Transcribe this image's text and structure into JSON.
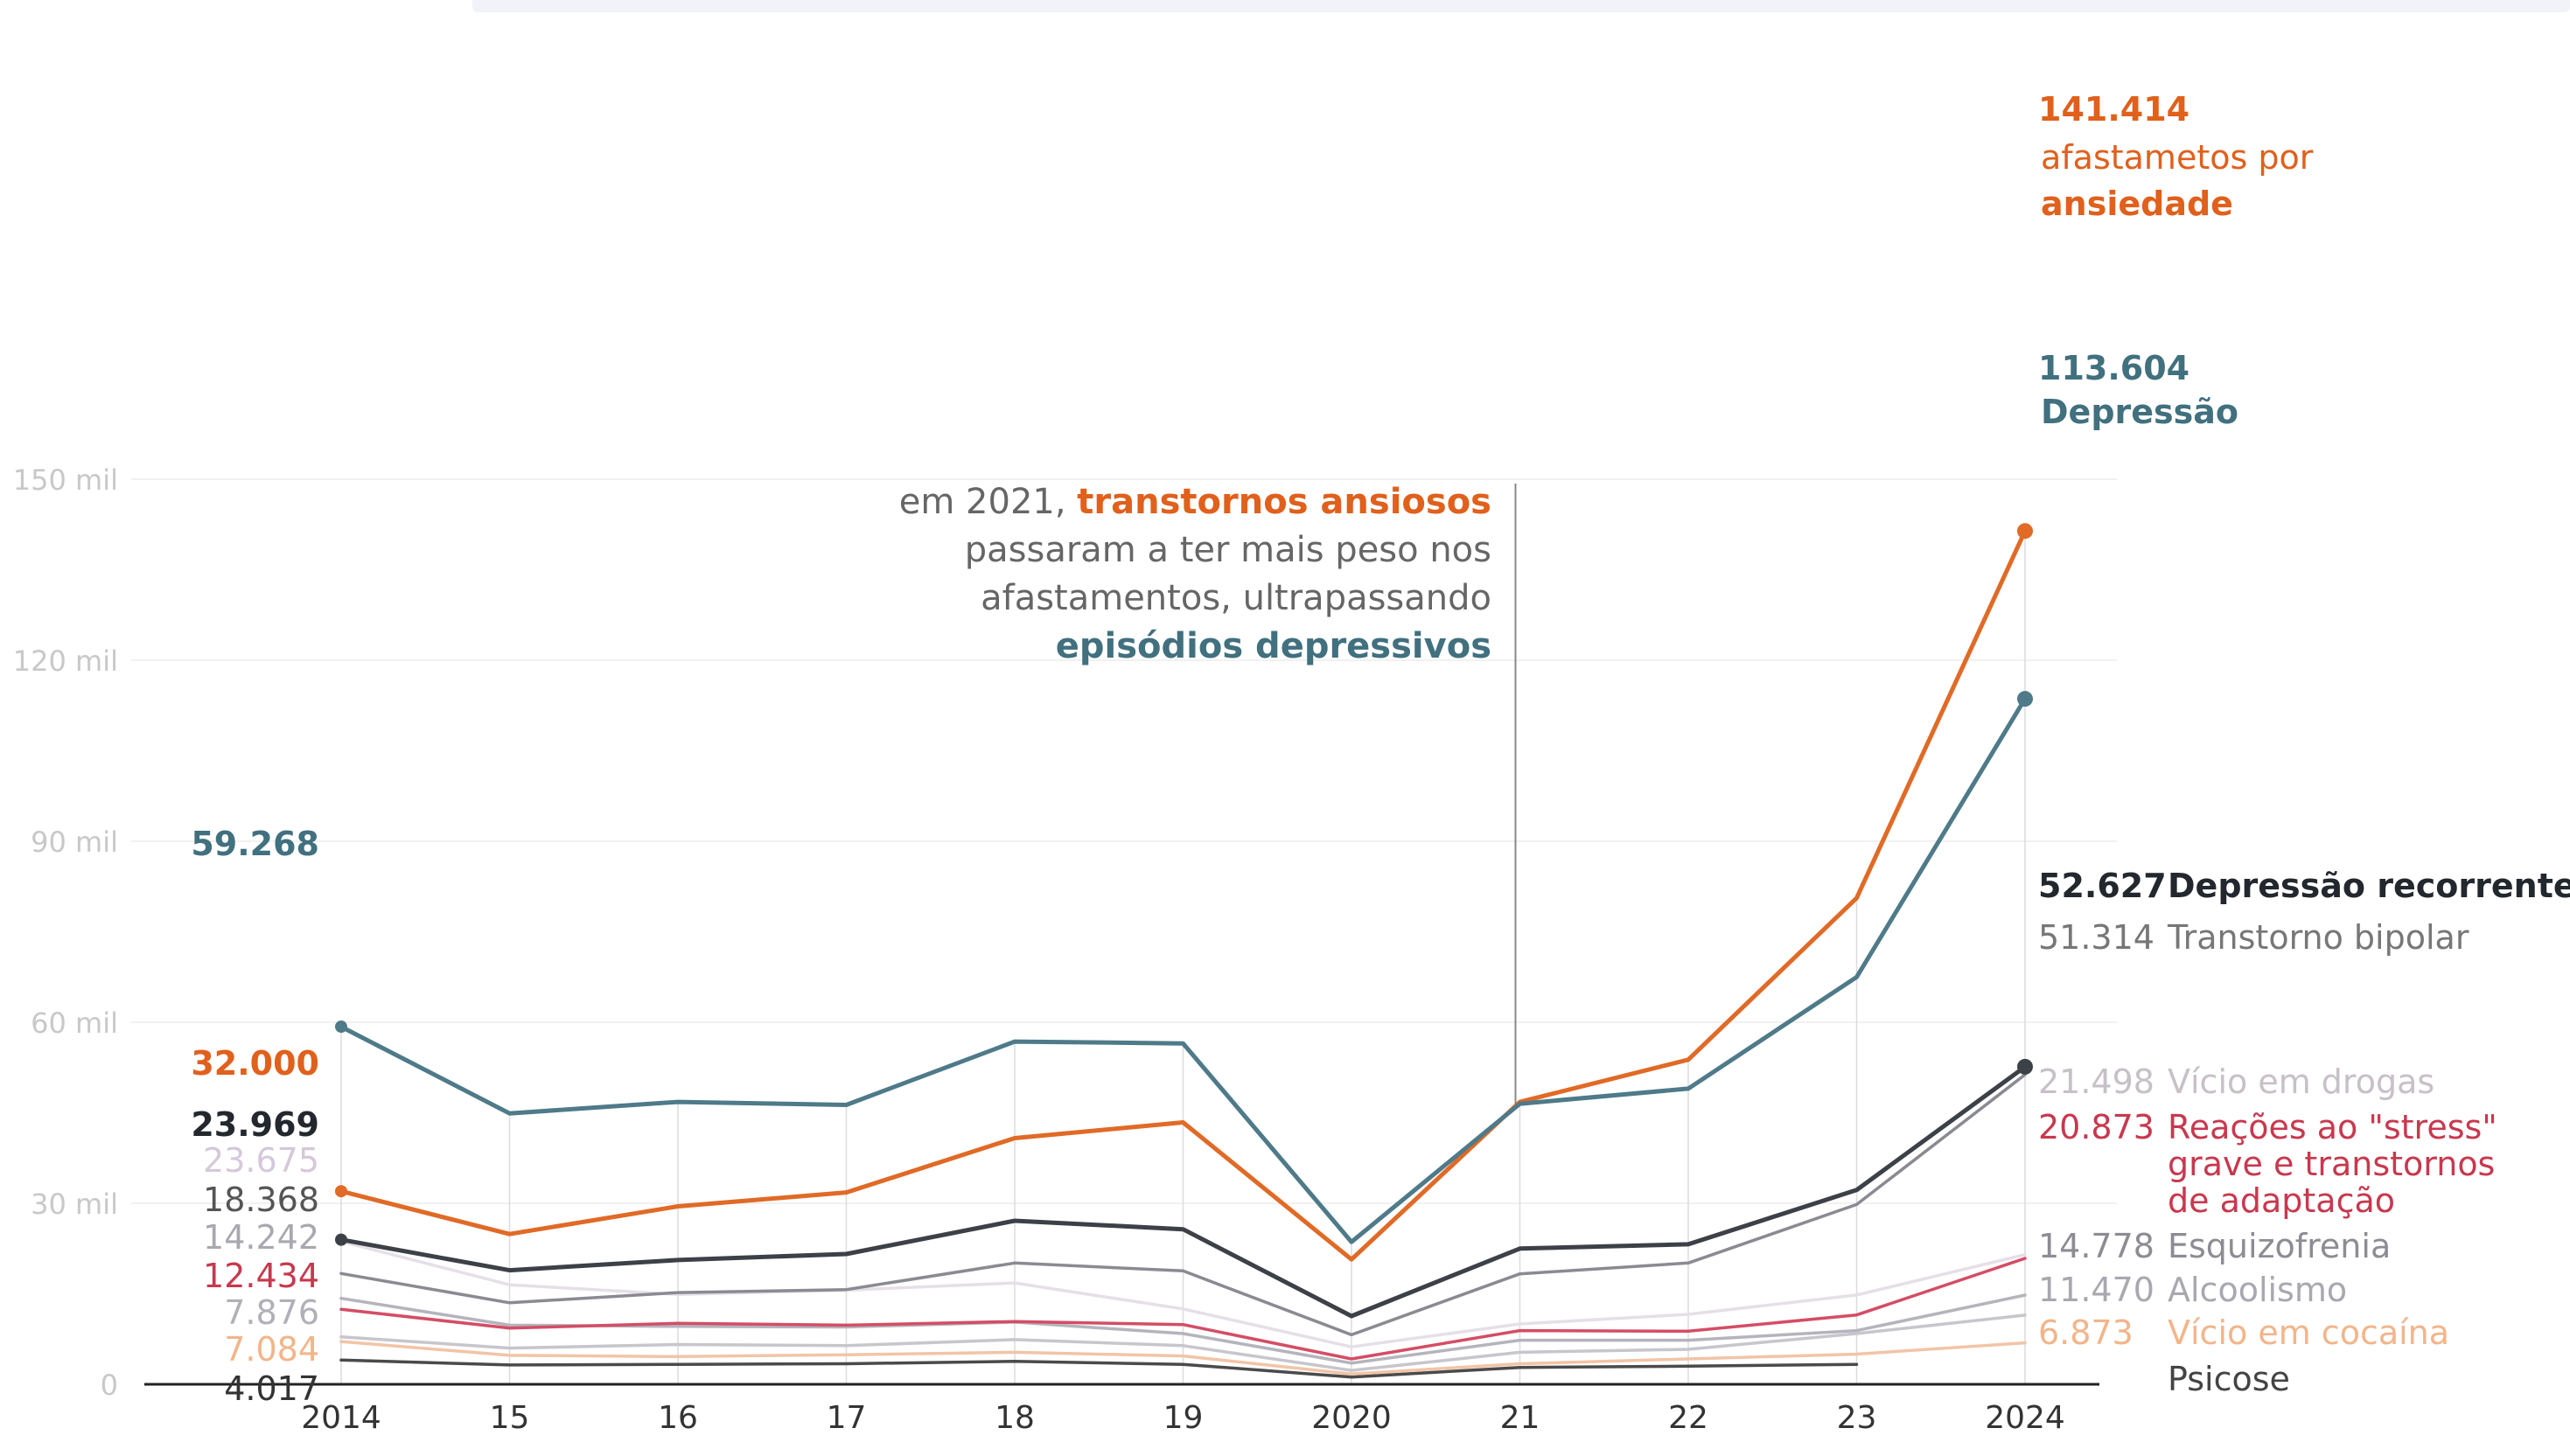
{
  "chart_data": {
    "type": "line",
    "x": [
      "2014",
      "15",
      "16",
      "17",
      "18",
      "19",
      "2020",
      "21",
      "22",
      "23",
      "2024"
    ],
    "ylim": [
      0,
      150000
    ],
    "yticks": [
      {
        "value": 0,
        "label": "0"
      },
      {
        "value": 30000,
        "label": "30 mil"
      },
      {
        "value": 60000,
        "label": "60 mil"
      },
      {
        "value": 90000,
        "label": "90 mil"
      },
      {
        "value": 120000,
        "label": "120 mil"
      },
      {
        "value": 150000,
        "label": "150 mil"
      }
    ],
    "grid": true,
    "series": [
      {
        "name": "Psicose",
        "color": "#4a4a4a",
        "values": [
          4017,
          3200,
          3300,
          3400,
          3800,
          3300,
          1200,
          2800,
          3000,
          3300,
          null
        ],
        "start_label": "4.017",
        "start_color": "#333333",
        "start_bold": false,
        "end_value": "",
        "end_name": "Psicose",
        "end_name_color": "#444444",
        "end_bold": false,
        "end_dot": false
      },
      {
        "name": "Vício em cocaína",
        "color": "#f2c4a6",
        "values": [
          7084,
          4800,
          4600,
          4900,
          5300,
          4700,
          1700,
          3400,
          4200,
          5000,
          6873
        ],
        "start_label": "7.084",
        "start_color": "#f2b58a",
        "start_bold": false,
        "end_value": "6.873",
        "end_name": "Vício em cocaína",
        "end_name_color": "#f2b58a",
        "end_bold": false,
        "end_dot": false
      },
      {
        "name": "Alcoolismo",
        "color": "#c6c6cc",
        "values": [
          7876,
          6000,
          6600,
          6400,
          7400,
          6400,
          2300,
          5300,
          5800,
          8400,
          11470
        ],
        "start_label": "7.876",
        "start_color": "#b0b0b8",
        "start_bold": false,
        "end_value": "11.470",
        "end_name": "Alcoolismo",
        "end_name_color": "#a8a8b0",
        "end_bold": false,
        "end_dot": false
      },
      {
        "name": "Esquizofrenia",
        "color": "#b4b4bc",
        "values": [
          14242,
          9800,
          9600,
          9500,
          10300,
          8400,
          3500,
          7300,
          7300,
          8900,
          14778
        ],
        "start_label": "14.242",
        "start_color": "#a8a8b0",
        "start_bold": false,
        "end_value": "14.778",
        "end_name": "Esquizofrenia",
        "end_name_color": "#8c8c94",
        "end_bold": false,
        "end_dot": false
      },
      {
        "name": "Reações ao \"stress\" grave e transtornos de adaptação",
        "color": "#d44d66",
        "values": [
          12434,
          9300,
          10100,
          9800,
          10400,
          9900,
          4200,
          8900,
          8800,
          11500,
          20873
        ],
        "start_label": "12.434",
        "start_color": "#c8384e",
        "start_bold": false,
        "end_value": "20.873",
        "end_name": "Reações ao \"stress\"|grave e transtornos|de adaptação",
        "end_name_color": "#c8384e",
        "end_bold": false,
        "end_dot": false
      },
      {
        "name": "Vício em drogas",
        "color": "#e6dfe8",
        "values": [
          23675,
          16500,
          14900,
          15600,
          16800,
          12500,
          6200,
          10000,
          11600,
          14800,
          21498
        ],
        "start_label": "23.675",
        "start_color": "#d6c8da",
        "start_bold": false,
        "end_value": "21.498",
        "end_name": "Vício em drogas",
        "end_name_color": "#c8c0c8",
        "end_bold": false,
        "end_dot": false
      },
      {
        "name": "Transtorno bipolar",
        "color": "#8a8a92",
        "values": [
          18368,
          13500,
          15200,
          15700,
          20100,
          18800,
          8200,
          18300,
          20100,
          29800,
          51314
        ],
        "start_label": "18.368",
        "start_color": "#555555",
        "start_bold": false,
        "end_value": "51.314",
        "end_name": "Transtorno bipolar",
        "end_name_color": "#777777",
        "end_bold": false,
        "end_dot": false
      },
      {
        "name": "Depressão recorrente",
        "color": "#3c4148",
        "values": [
          23969,
          18900,
          20600,
          21600,
          27100,
          25700,
          11300,
          22500,
          23200,
          32200,
          52627
        ],
        "start_label": "23.969",
        "start_color": "#22282e",
        "start_bold": true,
        "end_value": "52.627",
        "end_name": "Depressão recorrente",
        "end_name_color": "#22282e",
        "end_bold": true,
        "end_dot": true
      },
      {
        "name": "Ansiedade",
        "color": "#e06a26",
        "values": [
          32000,
          24900,
          29500,
          31800,
          40800,
          43400,
          20700,
          46800,
          53800,
          80600,
          141414
        ],
        "start_label": "32.000",
        "start_color": "#e0601c",
        "start_bold": true,
        "end_value": "141.414",
        "end_name": "afastametos por|ansiedade",
        "end_name_color": "#e0601c",
        "end_bold": false,
        "end_dot": true
      },
      {
        "name": "Depressão",
        "color": "#4e7a89",
        "values": [
          59268,
          44900,
          46800,
          46300,
          56800,
          56500,
          23600,
          46500,
          49000,
          67500,
          113604
        ],
        "start_label": "59.268",
        "start_color": "#41707f",
        "start_bold": true,
        "end_value": "113.604",
        "end_name": "Depressão",
        "end_name_color": "#41707f",
        "end_bold": true,
        "end_dot": true
      }
    ],
    "annotation": {
      "x": "21",
      "lines": [
        [
          {
            "text": "em 2021, ",
            "color": "#666666",
            "bold": false
          },
          {
            "text": "transtornos ansiosos",
            "color": "#e0601c",
            "bold": true
          }
        ],
        [
          {
            "text": "passaram a ter mais peso nos",
            "color": "#666666",
            "bold": false
          }
        ],
        [
          {
            "text": "afastamentos, ultrapassando",
            "color": "#666666",
            "bold": false
          }
        ],
        [
          {
            "text": "episódios depressivos",
            "color": "#41707f",
            "bold": true
          }
        ]
      ]
    }
  }
}
